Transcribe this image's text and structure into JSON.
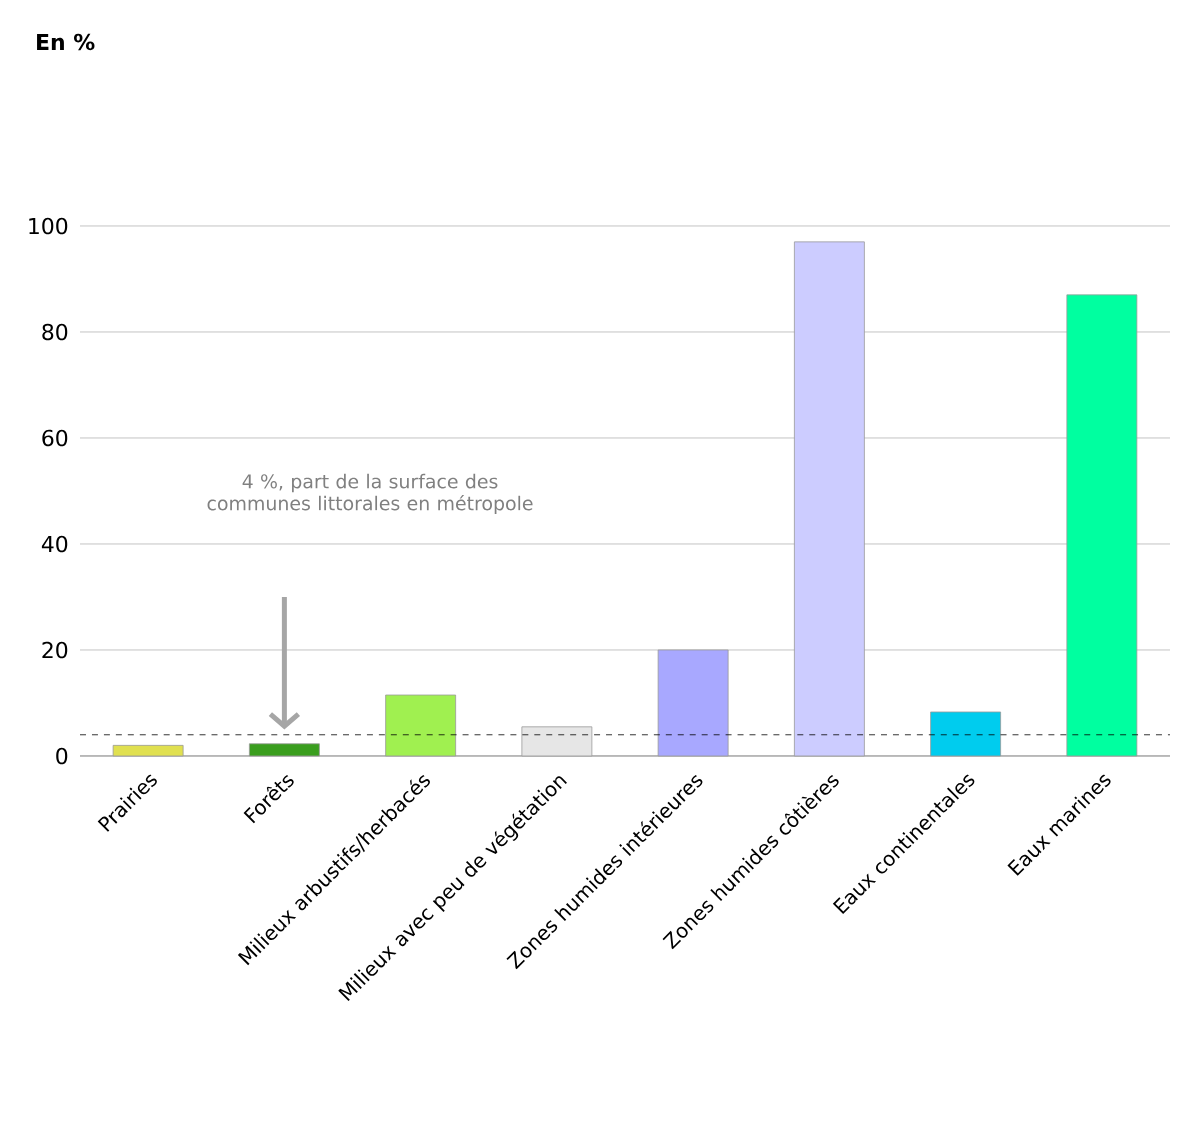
{
  "chart_data": {
    "type": "bar",
    "annotations": [
      "En %",
      "4 %, part de la surface des communes littorales en métropole"
    ],
    "categories": [
      "Prairies",
      "Forêts",
      "Milieux arbustifs/herbacés",
      "Milieux avec peu de végétation",
      "Zones humides intérieures",
      "Zones humides côtières",
      "Eaux continentales",
      "Eaux marines"
    ],
    "values": [
      2,
      2.3,
      11.5,
      5.5,
      20,
      97,
      8.3,
      87
    ],
    "colors": [
      "#e0e050",
      "#3a9e1e",
      "#a0f050",
      "#e6e6e6",
      "#a8a8ff",
      "#ccccff",
      "#00ccee",
      "#00ffa0"
    ],
    "ylim": [
      0,
      100
    ],
    "yticks": [
      0,
      20,
      40,
      60,
      80,
      100
    ],
    "grid": "y",
    "ref_lines": [
      {
        "axis": "y",
        "value": 4,
        "color": "#000000",
        "line_style": "dashed"
      }
    ]
  }
}
